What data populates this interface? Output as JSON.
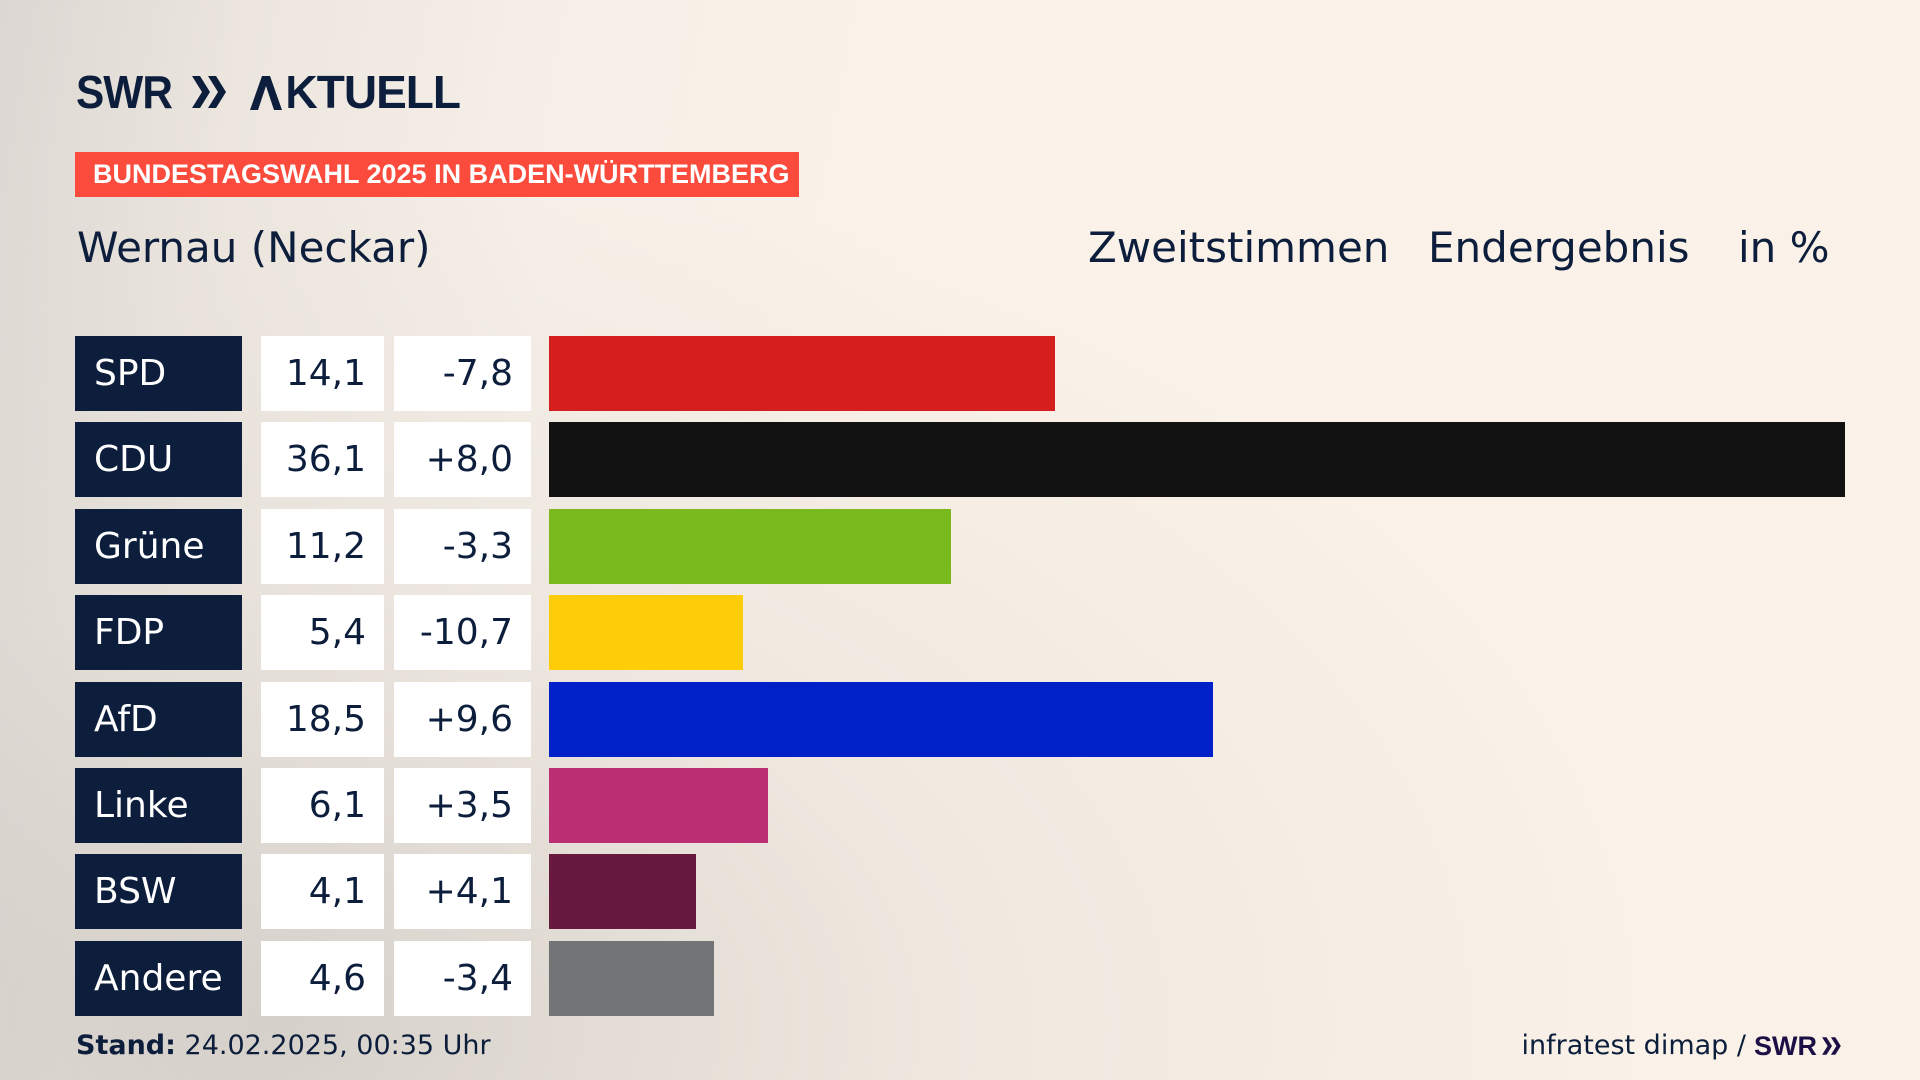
{
  "brand": {
    "logo_text": "SWR",
    "logo_suffix": "AKTUELL",
    "footer_logo_text": "SWR"
  },
  "banner": "BUNDESTAGSWAHL 2025 IN BADEN-WÜRTTEMBERG",
  "title": "Wernau (Neckar)",
  "header": {
    "vote_type": "Zweitstimmen",
    "status": "Endergebnis",
    "unit": "in %"
  },
  "footer": {
    "stand_label": "Stand:",
    "stand_value": "24.02.2025, 00:35 Uhr",
    "source": "infratest dimap /"
  },
  "colors": {
    "navy": "#0c1e3c",
    "banner": "#fa4b3c"
  },
  "chart_data": {
    "type": "bar",
    "orientation": "horizontal",
    "title": "Wernau (Neckar)",
    "xlabel": "Zweitstimmen Endergebnis in %",
    "ylabel": "",
    "xlim": [
      0,
      36.1
    ],
    "grid": false,
    "categories": [
      "SPD",
      "CDU",
      "Grüne",
      "FDP",
      "AfD",
      "Linke",
      "BSW",
      "Andere"
    ],
    "values": [
      14.1,
      36.1,
      11.2,
      5.4,
      18.5,
      6.1,
      4.1,
      4.6
    ],
    "value_labels": [
      "14,1",
      "36,1",
      "11,2",
      "5,4",
      "18,5",
      "6,1",
      "4,1",
      "4,6"
    ],
    "diff_labels": [
      "-7,8",
      "+8,0",
      "-3,3",
      "-10,7",
      "+9,6",
      "+3,5",
      "+4,1",
      "-3,4"
    ],
    "diffs": [
      -7.8,
      8.0,
      -3.3,
      -10.7,
      9.6,
      3.5,
      4.1,
      -3.4
    ],
    "bar_colors": [
      "#d51f1f",
      "#121212",
      "#7aba1e",
      "#ffcc0a",
      "#0020c8",
      "#bb3075",
      "#68193f",
      "#727475"
    ]
  }
}
